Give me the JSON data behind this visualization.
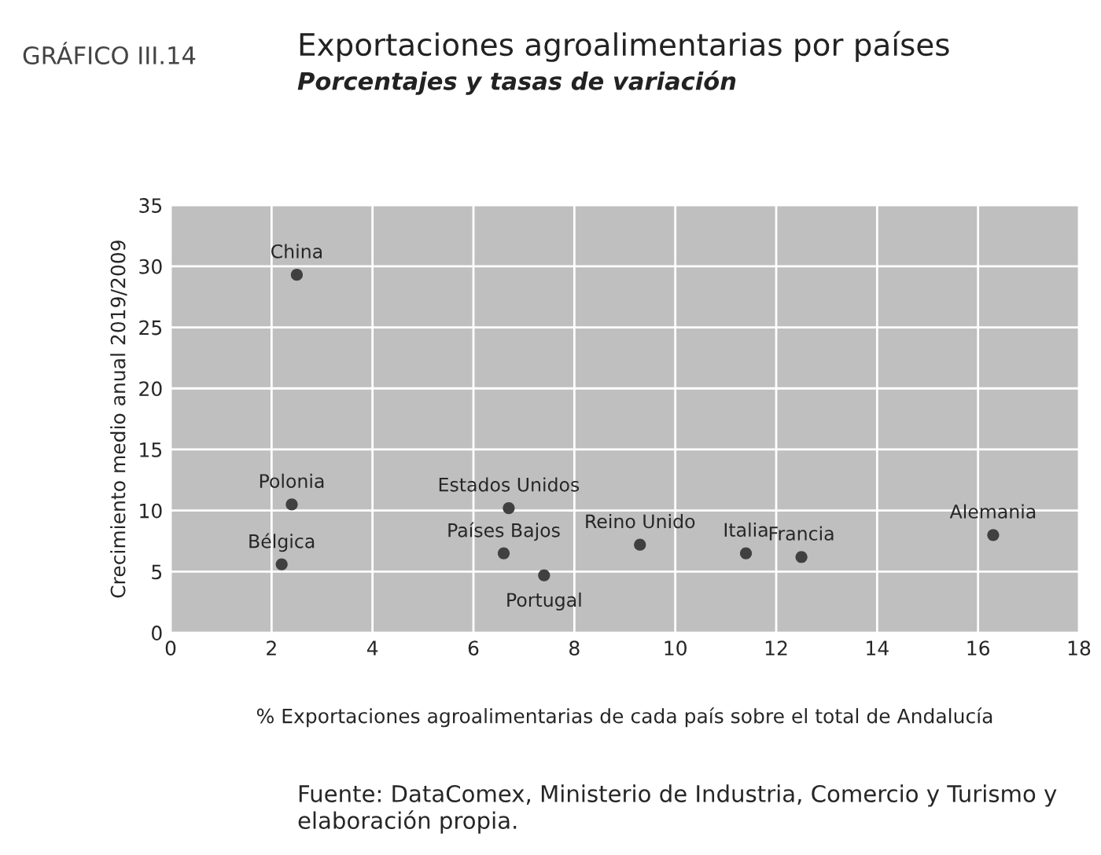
{
  "chart_data": {
    "type": "scatter",
    "title": "Exportaciones agroalimentarias por países",
    "subtitle": "Porcentajes y tasas de variación",
    "xlabel": "% Exportaciones agroalimentarias de cada país sobre el total de Andalucía",
    "ylabel": "Crecimiento medio anual 2019/2009",
    "x": [
      2.5,
      2.4,
      2.2,
      6.7,
      6.6,
      7.4,
      9.3,
      11.4,
      12.5,
      16.3
    ],
    "series": [
      {
        "color": "#404040",
        "values": [
          29.3,
          10.5,
          5.6,
          10.2,
          6.5,
          4.7,
          7.2,
          6.5,
          6.2,
          8.0
        ]
      }
    ],
    "annotations": [
      "GRÁFICO III.14",
      {
        "text": "China",
        "x": 2.5,
        "y": 29.3
      },
      {
        "text": "Polonia",
        "x": 2.4,
        "y": 10.5
      },
      {
        "text": "Bélgica",
        "x": 2.2,
        "y": 5.6
      },
      {
        "text": "Estados Unidos",
        "x": 6.7,
        "y": 10.2
      },
      {
        "text": "Países Bajos",
        "x": 6.6,
        "y": 6.5
      },
      {
        "text": "Portugal",
        "x": 7.4,
        "y": 4.7
      },
      {
        "text": "Reino Unido",
        "x": 9.3,
        "y": 7.2
      },
      {
        "text": "Italia",
        "x": 11.4,
        "y": 6.5
      },
      {
        "text": "Francia",
        "x": 12.5,
        "y": 6.2
      },
      {
        "text": "Alemania",
        "x": 16.3,
        "y": 8.0
      },
      "Fuente: DataComex, Ministerio de Industria, Comercio y Turismo y elaboración propia."
    ],
    "xlim": [
      0,
      18
    ],
    "xticks": [
      0,
      2,
      4,
      6,
      8,
      10,
      12,
      14,
      16,
      18
    ],
    "ylim": [
      0,
      35
    ],
    "yticks": [
      0,
      5,
      10,
      15,
      20,
      25,
      30,
      35
    ],
    "grid": true,
    "marker": "circle",
    "legend": false
  }
}
